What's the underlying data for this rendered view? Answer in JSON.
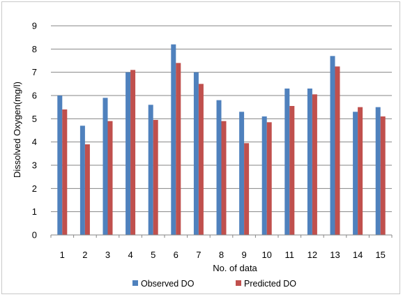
{
  "chart_data": {
    "type": "bar",
    "title": "",
    "xlabel": "No. of data",
    "ylabel": "Dissolved Oxygen(mg/l)",
    "ylim": [
      0,
      9
    ],
    "yticks": [
      "0",
      "1",
      "2",
      "3",
      "4",
      "5",
      "6",
      "7",
      "8",
      "9"
    ],
    "grid": "horizontal",
    "legend": "bottom",
    "categories": [
      "1",
      "2",
      "3",
      "4",
      "5",
      "6",
      "7",
      "8",
      "9",
      "10",
      "11",
      "12",
      "13",
      "14",
      "15"
    ],
    "series": [
      {
        "name": "Observed DO",
        "color": "#4f81bd",
        "values": [
          6.0,
          4.7,
          5.9,
          7.0,
          5.6,
          8.2,
          7.0,
          5.8,
          5.3,
          5.1,
          6.3,
          6.3,
          7.7,
          5.3,
          5.5
        ]
      },
      {
        "name": "Predicted DO",
        "color": "#c0504d",
        "values": [
          5.4,
          3.9,
          4.9,
          7.1,
          4.95,
          7.4,
          6.5,
          4.9,
          3.95,
          4.85,
          5.55,
          6.05,
          7.25,
          5.5,
          5.1
        ]
      }
    ]
  }
}
